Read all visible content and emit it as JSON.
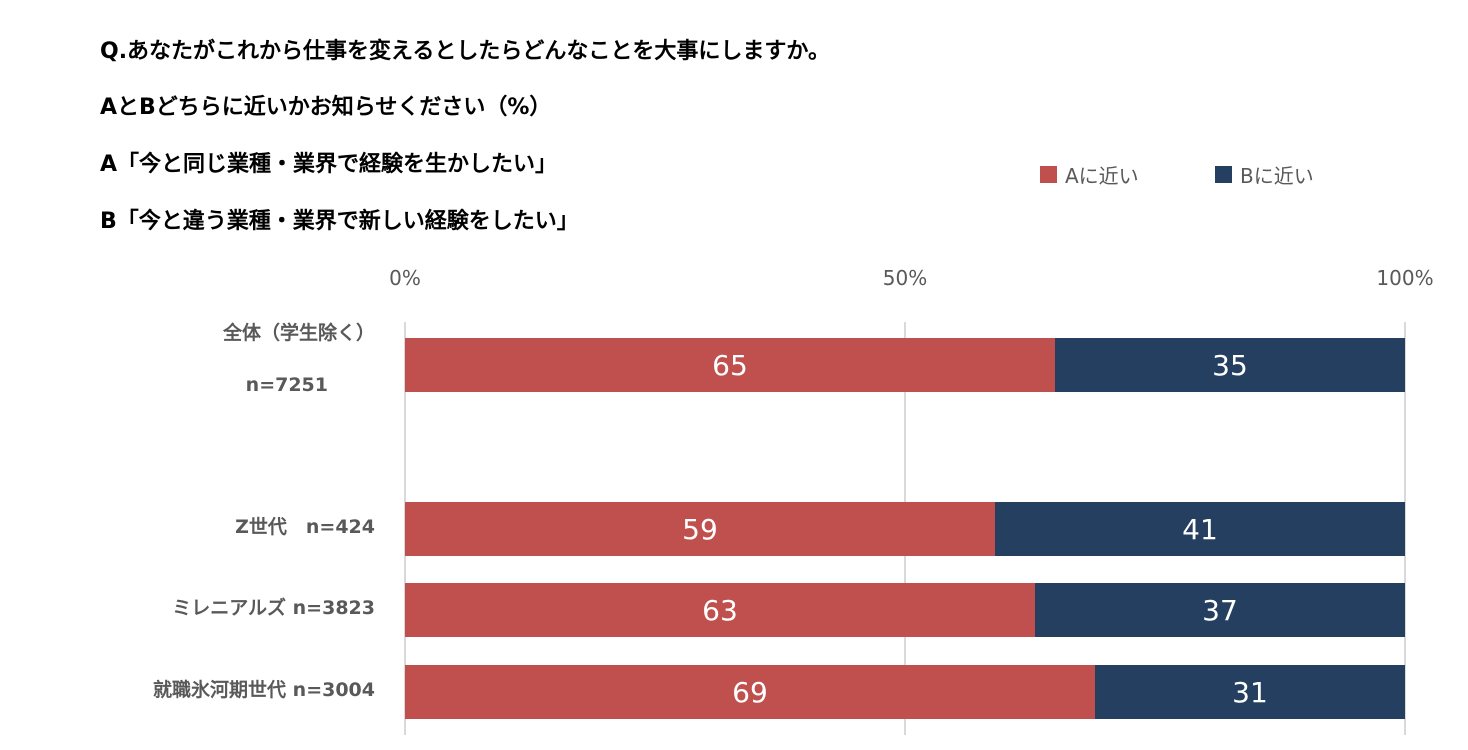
{
  "chart_data": {
    "type": "bar",
    "stacked": true,
    "orientation": "horizontal",
    "title_lines": [
      "Q.あなたがこれから仕事を変えるとしたらどんなことを大事にしますか。",
      "AとBどちらに近いかお知らせください（%）",
      "A「今と同じ業種・業界で経験を生かしたい」",
      "B「今と違う業種・業界で新しい経験をしたい」"
    ],
    "categories": [
      [
        "全体（学生除く）",
        "n=7251"
      ],
      [
        "Z世代　n=424"
      ],
      [
        "ミレニアルズ n=3823"
      ],
      [
        "就職氷河期世代 n=3004"
      ]
    ],
    "series": [
      {
        "name": "Aに近い",
        "color": "#C0504D",
        "values": [
          65,
          59,
          63,
          69
        ]
      },
      {
        "name": "Bに近い",
        "color": "#243F60",
        "values": [
          35,
          41,
          37,
          31
        ]
      }
    ],
    "xlim": [
      0,
      100
    ],
    "x_ticks": [
      "0%",
      "50%",
      "100%"
    ],
    "legend_position": "top-right",
    "grid": true
  }
}
